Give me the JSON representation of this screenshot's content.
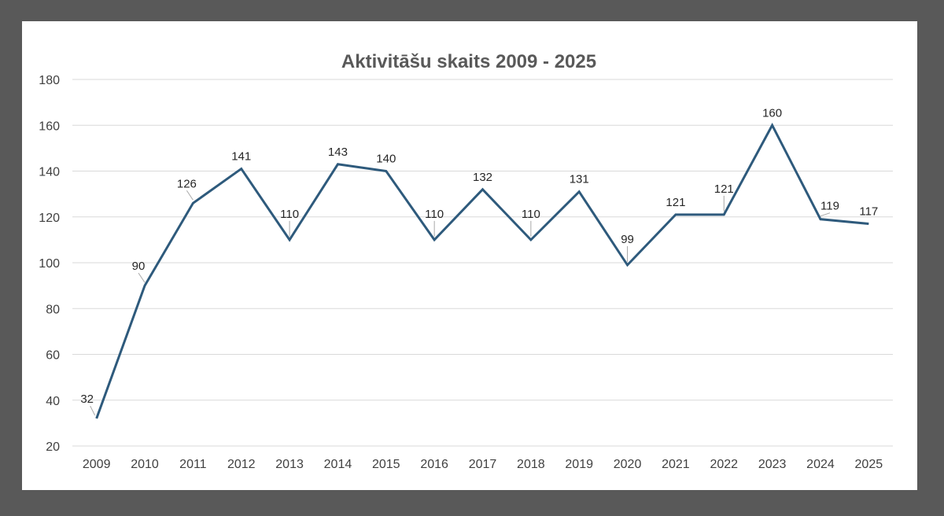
{
  "chart_data": {
    "type": "line",
    "title": "Aktivitāšu skaits 2009 - 2025",
    "categories": [
      "2009",
      "2010",
      "2011",
      "2012",
      "2013",
      "2014",
      "2015",
      "2016",
      "2017",
      "2018",
      "2019",
      "2020",
      "2021",
      "2022",
      "2023",
      "2024",
      "2025"
    ],
    "series": [
      {
        "name": "Aktivitāšu skaits",
        "color": "#2e5a7c",
        "values": [
          32,
          90,
          126,
          141,
          110,
          143,
          140,
          110,
          132,
          110,
          131,
          99,
          121,
          121,
          160,
          119,
          117
        ]
      }
    ],
    "ylim": [
      20,
      180
    ],
    "yticks": [
      20,
      40,
      60,
      80,
      100,
      120,
      140,
      160,
      180
    ],
    "xlabel": "",
    "ylabel": "",
    "grid": true,
    "legend": "none"
  }
}
